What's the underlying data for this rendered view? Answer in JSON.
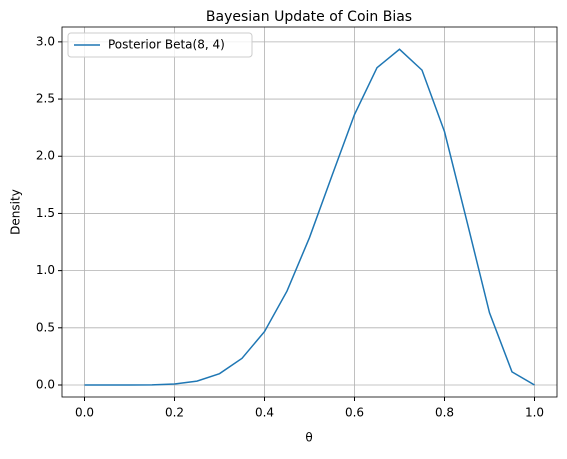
{
  "chart_data": {
    "type": "line",
    "title": "Bayesian Update of Coin Bias",
    "xlabel": "θ",
    "ylabel": "Density",
    "x": [
      0,
      0.05,
      0.1,
      0.15,
      0.2,
      0.25,
      0.3,
      0.35,
      0.4,
      0.45,
      0.5,
      0.55,
      0.6,
      0.65,
      0.7,
      0.75,
      0.8,
      0.85,
      0.9,
      0.95,
      1
    ],
    "series": [
      {
        "name": "Posterior Beta(8, 4)",
        "color": "#1f77b4",
        "values": [
          0,
          9e-07,
          0.0001,
          0.0014,
          0.0087,
          0.034,
          0.099,
          0.233,
          0.467,
          0.821,
          1.289,
          1.831,
          2.365,
          2.774,
          2.935,
          2.753,
          2.215,
          1.428,
          0.631,
          0.115,
          0
        ]
      }
    ],
    "xlim": [
      -0.05,
      1.05
    ],
    "xticks": [
      {
        "value": 0,
        "label": "0.0"
      },
      {
        "value": 0.2,
        "label": "0.2"
      },
      {
        "value": 0.4,
        "label": "0.4"
      },
      {
        "value": 0.6,
        "label": "0.6"
      },
      {
        "value": 0.8,
        "label": "0.8"
      },
      {
        "value": 1,
        "label": "1.0"
      }
    ],
    "ylim": [
      -0.105,
      3.13
    ],
    "yticks": [
      {
        "value": 0,
        "label": "0.0"
      },
      {
        "value": 0.5,
        "label": "0.5"
      },
      {
        "value": 1,
        "label": "1.0"
      },
      {
        "value": 1.5,
        "label": "1.5"
      },
      {
        "value": 2,
        "label": "2.0"
      },
      {
        "value": 2.5,
        "label": "2.5"
      },
      {
        "value": 3,
        "label": "3.0"
      }
    ],
    "grid": true,
    "legend": "upper left"
  }
}
